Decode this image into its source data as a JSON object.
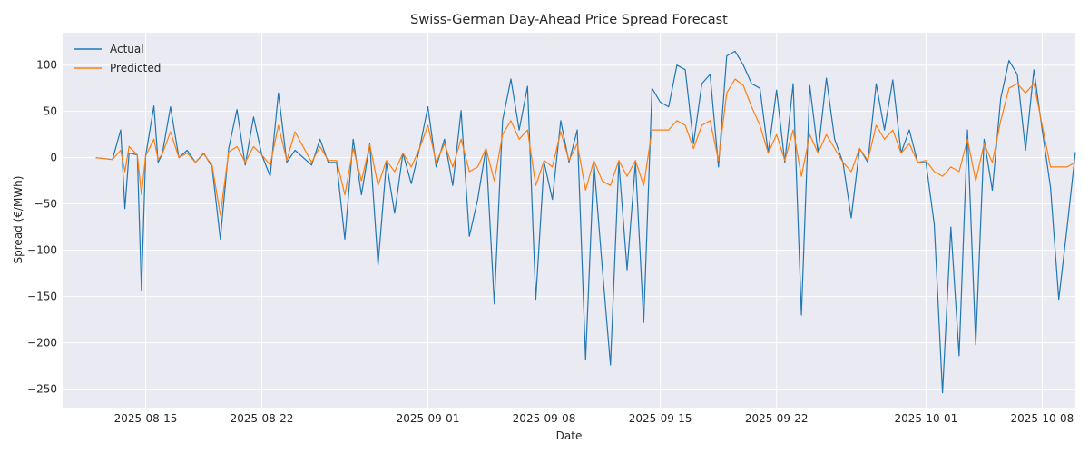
{
  "chart_data": {
    "type": "line",
    "title": "Swiss-German Day-Ahead Price Spread Forecast",
    "xlabel": "Date",
    "ylabel": "Spread (€/MWh)",
    "x_range": [
      "2025-08-10",
      "2025-10-10"
    ],
    "ylim": [
      -270,
      135
    ],
    "x_ticks": [
      "2025-08-15",
      "2025-08-22",
      "2025-09-01",
      "2025-09-08",
      "2025-09-15",
      "2025-09-22",
      "2025-10-01",
      "2025-10-08"
    ],
    "y_ticks": [
      100,
      50,
      0,
      -50,
      -100,
      -150,
      -200,
      -250
    ],
    "y_tick_labels": [
      "100",
      "50",
      "0",
      "−50",
      "−100",
      "−150",
      "−200",
      "−250"
    ],
    "grid": true,
    "legend_position": "top-left",
    "series": [
      {
        "name": "Actual",
        "color": "#1f77b4",
        "points": [
          [
            "2025-08-12",
            0
          ],
          [
            "2025-08-13",
            -2
          ],
          [
            "2025-08-13T12",
            30
          ],
          [
            "2025-08-13T18",
            -55
          ],
          [
            "2025-08-14",
            5
          ],
          [
            "2025-08-14T12",
            3
          ],
          [
            "2025-08-14T18",
            -143
          ],
          [
            "2025-08-15",
            2
          ],
          [
            "2025-08-15T12",
            56
          ],
          [
            "2025-08-15T18",
            -5
          ],
          [
            "2025-08-16",
            4
          ],
          [
            "2025-08-16T12",
            55
          ],
          [
            "2025-08-17",
            0
          ],
          [
            "2025-08-17T12",
            8
          ],
          [
            "2025-08-18",
            -5
          ],
          [
            "2025-08-18T12",
            5
          ],
          [
            "2025-08-19",
            -10
          ],
          [
            "2025-08-19T12",
            -88
          ],
          [
            "2025-08-20",
            10
          ],
          [
            "2025-08-20T12",
            52
          ],
          [
            "2025-08-21",
            -8
          ],
          [
            "2025-08-21T12",
            44
          ],
          [
            "2025-08-22",
            3
          ],
          [
            "2025-08-22T12",
            -20
          ],
          [
            "2025-08-23",
            70
          ],
          [
            "2025-08-23T12",
            -5
          ],
          [
            "2025-08-24",
            8
          ],
          [
            "2025-08-25",
            -8
          ],
          [
            "2025-08-25T12",
            20
          ],
          [
            "2025-08-26",
            -5
          ],
          [
            "2025-08-26T12",
            -5
          ],
          [
            "2025-08-27",
            -88
          ],
          [
            "2025-08-27T12",
            20
          ],
          [
            "2025-08-28",
            -40
          ],
          [
            "2025-08-28T12",
            15
          ],
          [
            "2025-08-29",
            -116
          ],
          [
            "2025-08-29T12",
            -5
          ],
          [
            "2025-08-30",
            -60
          ],
          [
            "2025-08-30T12",
            5
          ],
          [
            "2025-08-31",
            -28
          ],
          [
            "2025-08-31T12",
            10
          ],
          [
            "2025-09-01",
            55
          ],
          [
            "2025-09-01T12",
            -10
          ],
          [
            "2025-09-02",
            20
          ],
          [
            "2025-09-02T12",
            -30
          ],
          [
            "2025-09-03",
            51
          ],
          [
            "2025-09-03T12",
            -85
          ],
          [
            "2025-09-04",
            -45
          ],
          [
            "2025-09-04T12",
            10
          ],
          [
            "2025-09-05",
            -158
          ],
          [
            "2025-09-05T12",
            40
          ],
          [
            "2025-09-06",
            85
          ],
          [
            "2025-09-06T12",
            30
          ],
          [
            "2025-09-07",
            77
          ],
          [
            "2025-09-07T12",
            -153
          ],
          [
            "2025-09-08",
            -5
          ],
          [
            "2025-09-08T12",
            -45
          ],
          [
            "2025-09-09",
            40
          ],
          [
            "2025-09-09T12",
            -5
          ],
          [
            "2025-09-10",
            30
          ],
          [
            "2025-09-10T12",
            -218
          ],
          [
            "2025-09-11",
            -5
          ],
          [
            "2025-09-11T12",
            -118
          ],
          [
            "2025-09-12",
            -224
          ],
          [
            "2025-09-12T12",
            -5
          ],
          [
            "2025-09-13",
            -121
          ],
          [
            "2025-09-13T12",
            -5
          ],
          [
            "2025-09-14",
            -178
          ],
          [
            "2025-09-14T12",
            75
          ],
          [
            "2025-09-15",
            60
          ],
          [
            "2025-09-15T12",
            55
          ],
          [
            "2025-09-16",
            100
          ],
          [
            "2025-09-16T12",
            95
          ],
          [
            "2025-09-17",
            15
          ],
          [
            "2025-09-17T12",
            80
          ],
          [
            "2025-09-18",
            90
          ],
          [
            "2025-09-18T12",
            -10
          ],
          [
            "2025-09-19",
            110
          ],
          [
            "2025-09-19T12",
            115
          ],
          [
            "2025-09-20",
            100
          ],
          [
            "2025-09-20T12",
            80
          ],
          [
            "2025-09-21",
            75
          ],
          [
            "2025-09-21T12",
            5
          ],
          [
            "2025-09-22",
            73
          ],
          [
            "2025-09-22T12",
            -5
          ],
          [
            "2025-09-23",
            80
          ],
          [
            "2025-09-23T12",
            -170
          ],
          [
            "2025-09-24",
            78
          ],
          [
            "2025-09-24T12",
            5
          ],
          [
            "2025-09-25",
            86
          ],
          [
            "2025-09-25T12",
            20
          ],
          [
            "2025-09-26",
            -5
          ],
          [
            "2025-09-26T12",
            -65
          ],
          [
            "2025-09-27",
            10
          ],
          [
            "2025-09-27T12",
            -5
          ],
          [
            "2025-09-28",
            80
          ],
          [
            "2025-09-28T12",
            30
          ],
          [
            "2025-09-29",
            84
          ],
          [
            "2025-09-29T12",
            5
          ],
          [
            "2025-09-30",
            30
          ],
          [
            "2025-09-30T12",
            -5
          ],
          [
            "2025-10-01",
            -5
          ],
          [
            "2025-10-01T12",
            -72
          ],
          [
            "2025-10-02",
            -254
          ],
          [
            "2025-10-02T12",
            -75
          ],
          [
            "2025-10-03",
            -214
          ],
          [
            "2025-10-03T12",
            30
          ],
          [
            "2025-10-04",
            -202
          ],
          [
            "2025-10-04T12",
            20
          ],
          [
            "2025-10-05",
            -35
          ],
          [
            "2025-10-05T12",
            64
          ],
          [
            "2025-10-06",
            105
          ],
          [
            "2025-10-06T12",
            90
          ],
          [
            "2025-10-07",
            8
          ],
          [
            "2025-10-07T12",
            95
          ],
          [
            "2025-10-08",
            30
          ],
          [
            "2025-10-08T12",
            -32
          ],
          [
            "2025-10-09",
            -153
          ],
          [
            "2025-10-09T12",
            -75
          ],
          [
            "2025-10-10",
            6
          ]
        ]
      },
      {
        "name": "Predicted",
        "color": "#ff7f0e",
        "points": [
          [
            "2025-08-12",
            0
          ],
          [
            "2025-08-13",
            -2
          ],
          [
            "2025-08-13T12",
            8
          ],
          [
            "2025-08-13T18",
            -15
          ],
          [
            "2025-08-14",
            12
          ],
          [
            "2025-08-14T12",
            3
          ],
          [
            "2025-08-14T18",
            -40
          ],
          [
            "2025-08-15",
            2
          ],
          [
            "2025-08-15T12",
            20
          ],
          [
            "2025-08-15T18",
            -2
          ],
          [
            "2025-08-16",
            4
          ],
          [
            "2025-08-16T12",
            28
          ],
          [
            "2025-08-17",
            0
          ],
          [
            "2025-08-17T12",
            5
          ],
          [
            "2025-08-18",
            -5
          ],
          [
            "2025-08-18T12",
            4
          ],
          [
            "2025-08-19",
            -8
          ],
          [
            "2025-08-19T12",
            -62
          ],
          [
            "2025-08-20",
            6
          ],
          [
            "2025-08-20T12",
            12
          ],
          [
            "2025-08-21",
            -5
          ],
          [
            "2025-08-21T12",
            12
          ],
          [
            "2025-08-22",
            3
          ],
          [
            "2025-08-22T12",
            -8
          ],
          [
            "2025-08-23",
            35
          ],
          [
            "2025-08-23T12",
            -3
          ],
          [
            "2025-08-24",
            28
          ],
          [
            "2025-08-25",
            -5
          ],
          [
            "2025-08-25T12",
            12
          ],
          [
            "2025-08-26",
            -3
          ],
          [
            "2025-08-26T12",
            -3
          ],
          [
            "2025-08-27",
            -40
          ],
          [
            "2025-08-27T12",
            10
          ],
          [
            "2025-08-28",
            -25
          ],
          [
            "2025-08-28T12",
            14
          ],
          [
            "2025-08-29",
            -30
          ],
          [
            "2025-08-29T12",
            -3
          ],
          [
            "2025-08-30",
            -15
          ],
          [
            "2025-08-30T12",
            5
          ],
          [
            "2025-08-31",
            -10
          ],
          [
            "2025-08-31T12",
            10
          ],
          [
            "2025-09-01",
            35
          ],
          [
            "2025-09-01T12",
            -5
          ],
          [
            "2025-09-02",
            15
          ],
          [
            "2025-09-02T12",
            -10
          ],
          [
            "2025-09-03",
            20
          ],
          [
            "2025-09-03T12",
            -15
          ],
          [
            "2025-09-04",
            -10
          ],
          [
            "2025-09-04T12",
            10
          ],
          [
            "2025-09-05",
            -25
          ],
          [
            "2025-09-05T12",
            25
          ],
          [
            "2025-09-06",
            40
          ],
          [
            "2025-09-06T12",
            20
          ],
          [
            "2025-09-07",
            30
          ],
          [
            "2025-09-07T12",
            -30
          ],
          [
            "2025-09-08",
            -3
          ],
          [
            "2025-09-08T12",
            -10
          ],
          [
            "2025-09-09",
            28
          ],
          [
            "2025-09-09T12",
            -3
          ],
          [
            "2025-09-10",
            15
          ],
          [
            "2025-09-10T12",
            -35
          ],
          [
            "2025-09-11",
            -3
          ],
          [
            "2025-09-11T12",
            -25
          ],
          [
            "2025-09-12",
            -30
          ],
          [
            "2025-09-12T12",
            -3
          ],
          [
            "2025-09-13",
            -20
          ],
          [
            "2025-09-13T12",
            -3
          ],
          [
            "2025-09-14",
            -30
          ],
          [
            "2025-09-14T12",
            30
          ],
          [
            "2025-09-15",
            30
          ],
          [
            "2025-09-15T12",
            30
          ],
          [
            "2025-09-16",
            40
          ],
          [
            "2025-09-16T12",
            35
          ],
          [
            "2025-09-17",
            10
          ],
          [
            "2025-09-17T12",
            35
          ],
          [
            "2025-09-18",
            40
          ],
          [
            "2025-09-18T12",
            -3
          ],
          [
            "2025-09-19",
            70
          ],
          [
            "2025-09-19T12",
            85
          ],
          [
            "2025-09-20",
            78
          ],
          [
            "2025-09-20T12",
            55
          ],
          [
            "2025-09-21",
            35
          ],
          [
            "2025-09-21T12",
            5
          ],
          [
            "2025-09-22",
            25
          ],
          [
            "2025-09-22T12",
            -3
          ],
          [
            "2025-09-23",
            30
          ],
          [
            "2025-09-23T12",
            -20
          ],
          [
            "2025-09-24",
            25
          ],
          [
            "2025-09-24T12",
            5
          ],
          [
            "2025-09-25",
            25
          ],
          [
            "2025-09-25T12",
            10
          ],
          [
            "2025-09-26",
            -5
          ],
          [
            "2025-09-26T12",
            -15
          ],
          [
            "2025-09-27",
            10
          ],
          [
            "2025-09-27T12",
            -3
          ],
          [
            "2025-09-28",
            35
          ],
          [
            "2025-09-28T12",
            20
          ],
          [
            "2025-09-29",
            30
          ],
          [
            "2025-09-29T12",
            5
          ],
          [
            "2025-09-30",
            15
          ],
          [
            "2025-09-30T12",
            -5
          ],
          [
            "2025-10-01",
            -3
          ],
          [
            "2025-10-01T12",
            -15
          ],
          [
            "2025-10-02",
            -20
          ],
          [
            "2025-10-02T12",
            -10
          ],
          [
            "2025-10-03",
            -15
          ],
          [
            "2025-10-03T12",
            20
          ],
          [
            "2025-10-04",
            -25
          ],
          [
            "2025-10-04T12",
            15
          ],
          [
            "2025-10-05",
            -5
          ],
          [
            "2025-10-05T12",
            40
          ],
          [
            "2025-10-06",
            75
          ],
          [
            "2025-10-06T12",
            80
          ],
          [
            "2025-10-07",
            70
          ],
          [
            "2025-10-07T12",
            80
          ],
          [
            "2025-10-08",
            35
          ],
          [
            "2025-10-08T12",
            -10
          ],
          [
            "2025-10-09",
            -10
          ],
          [
            "2025-10-09T12",
            -10
          ],
          [
            "2025-10-10",
            -5
          ]
        ]
      }
    ]
  }
}
